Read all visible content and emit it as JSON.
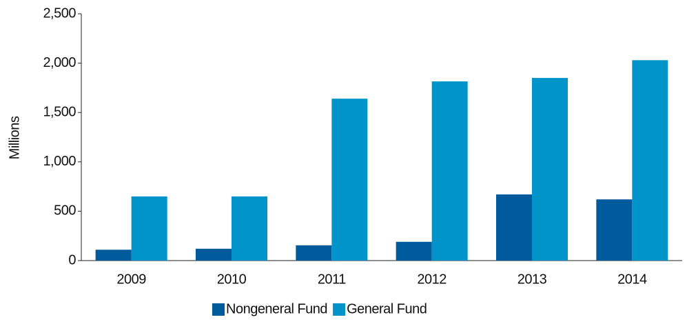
{
  "chart_data": {
    "type": "bar",
    "y_label": "Millions",
    "categories": [
      "2009",
      "2010",
      "2011",
      "2012",
      "2013",
      "2014"
    ],
    "series": [
      {
        "name": "Nongeneral Fund",
        "color": "#005b9c",
        "values": [
          110,
          120,
          155,
          190,
          670,
          620
        ]
      },
      {
        "name": "General Fund",
        "color": "#0094cb",
        "values": [
          650,
          650,
          1640,
          1815,
          1850,
          2030
        ]
      }
    ],
    "ylim": [
      0,
      2500
    ],
    "yticks": [
      0,
      500,
      {
        "value": 1000,
        "label": "1,000"
      },
      {
        "value": 1500,
        "label": "1,500"
      },
      {
        "value": 2000,
        "label": "2,000"
      },
      {
        "value": 2500,
        "label": "2,500"
      }
    ],
    "grid": false,
    "legend": "bottom"
  }
}
